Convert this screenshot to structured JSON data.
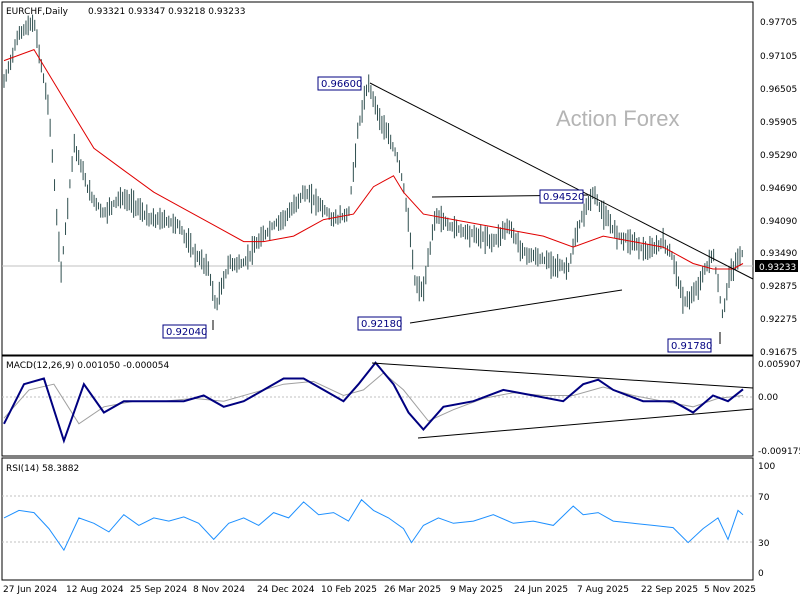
{
  "colors": {
    "bar": "#2f4f4f",
    "ma": "#e00000",
    "macd_main": "#000080",
    "macd_signal": "#a0a0a0",
    "rsi": "#1e90ff",
    "trend": "#000000",
    "label_border": "#000080",
    "grid": "#c0c0c0"
  },
  "chart_data": [
    {
      "type": "line",
      "panel": "price",
      "title": "EURCHF,Daily",
      "ohlc": "0.93321 0.93347 0.93218 0.93233",
      "watermark": "Action Forex",
      "ylim": [
        0.9145,
        0.9785
      ],
      "y_ticks": [
        "0.97705",
        "0.97105",
        "0.96505",
        "0.95905",
        "0.95290",
        "0.94690",
        "0.94090",
        "0.93490",
        "0.92875",
        "0.92275",
        "0.91675"
      ],
      "x_ticks": [
        "27 Jun 2024",
        "12 Aug 2024",
        "25 Sep 2024",
        "8 Nov 2024",
        "24 Dec 2024",
        "10 Feb 2025",
        "26 Mar 2025",
        "9 May 2025",
        "24 Jun 2025",
        "7 Aug 2025",
        "22 Sep 2025",
        "5 Nov 2025"
      ],
      "last_price": "0.93233",
      "annotations": [
        "0.96600",
        "0.94520",
        "0.92040",
        "0.92180",
        "0.91780"
      ],
      "series": [
        {
          "name": "",
          "kind": "ohlc-bars",
          "x": [
            0,
            15,
            30,
            45,
            57,
            70,
            85,
            100,
            115,
            130,
            145,
            160,
            175,
            190,
            205,
            212,
            225,
            240,
            255,
            270,
            285,
            300,
            315,
            330,
            345,
            355,
            365,
            375,
            385,
            395,
            402,
            412,
            420,
            432,
            445,
            460,
            475,
            490,
            505,
            520,
            535,
            550,
            565,
            570,
            578,
            590,
            600,
            615,
            630,
            645,
            660,
            670,
            680,
            690,
            700,
            710,
            720,
            725,
            735,
            740
          ],
          "values": [
            0.964,
            0.973,
            0.975,
            0.959,
            0.929,
            0.953,
            0.944,
            0.94,
            0.943,
            0.942,
            0.939,
            0.939,
            0.938,
            0.933,
            0.93,
            0.923,
            0.931,
            0.931,
            0.935,
            0.938,
            0.94,
            0.944,
            0.942,
            0.939,
            0.94,
            0.956,
            0.964,
            0.958,
            0.954,
            0.95,
            0.943,
            0.927,
            0.926,
            0.94,
            0.938,
            0.937,
            0.936,
            0.935,
            0.938,
            0.933,
            0.932,
            0.931,
            0.93,
            0.934,
            0.939,
            0.944,
            0.94,
            0.936,
            0.935,
            0.933,
            0.935,
            0.932,
            0.924,
            0.925,
            0.929,
            0.933,
            0.921,
            0.928,
            0.932,
            0.933
          ]
        },
        {
          "name": "",
          "kind": "moving-average",
          "x": [
            0,
            30,
            60,
            90,
            120,
            150,
            180,
            210,
            240,
            260,
            290,
            320,
            350,
            370,
            390,
            400,
            420,
            450,
            480,
            510,
            540,
            570,
            600,
            630,
            660,
            690,
            710,
            730,
            740
          ],
          "values": [
            0.968,
            0.97,
            0.961,
            0.952,
            0.948,
            0.944,
            0.941,
            0.938,
            0.935,
            0.935,
            0.936,
            0.939,
            0.94,
            0.945,
            0.947,
            0.944,
            0.94,
            0.939,
            0.938,
            0.937,
            0.936,
            0.934,
            0.936,
            0.935,
            0.934,
            0.931,
            0.93,
            0.93,
            0.931
          ]
        }
      ]
    },
    {
      "type": "line",
      "panel": "macd",
      "title": "MACD(12,26,9) 0.001050 -0.000054",
      "ylim": [
        -0.0105,
        0.0068
      ],
      "y_ticks": [
        "0.005907",
        "0.00",
        "-0.009175"
      ],
      "series": [
        {
          "name": "",
          "kind": "macd",
          "x": [
            0,
            20,
            40,
            60,
            80,
            100,
            120,
            140,
            160,
            180,
            200,
            220,
            240,
            260,
            280,
            300,
            320,
            340,
            355,
            372,
            390,
            405,
            420,
            440,
            470,
            500,
            530,
            560,
            580,
            595,
            610,
            640,
            670,
            690,
            710,
            725,
            740
          ],
          "values": [
            -0.005,
            0.002,
            0.003,
            -0.008,
            0.002,
            -0.003,
            -0.001,
            -0.001,
            -0.001,
            -0.001,
            0.0,
            -0.002,
            -0.001,
            0.001,
            0.003,
            0.003,
            0.001,
            -0.001,
            0.002,
            0.0058,
            0.002,
            -0.003,
            -0.006,
            -0.002,
            -0.001,
            0.001,
            0.0,
            -0.001,
            0.002,
            0.0028,
            0.001,
            -0.001,
            -0.001,
            -0.003,
            0.0,
            -0.001,
            0.0011
          ]
        },
        {
          "name": "",
          "kind": "signal",
          "x": [
            0,
            25,
            50,
            75,
            100,
            130,
            160,
            190,
            220,
            250,
            280,
            310,
            340,
            360,
            380,
            400,
            425,
            450,
            480,
            510,
            540,
            570,
            600,
            630,
            660,
            690,
            715,
            740
          ],
          "values": [
            -0.004,
            0.001,
            0.002,
            -0.005,
            -0.002,
            -0.001,
            -0.001,
            -0.0005,
            -0.001,
            0.0005,
            0.002,
            0.0025,
            0.0,
            0.001,
            0.004,
            0.001,
            -0.0045,
            -0.0025,
            -0.0005,
            0.0005,
            0.0,
            0.0,
            0.0015,
            0.0,
            -0.001,
            -0.002,
            -0.0005,
            0.0
          ]
        }
      ]
    },
    {
      "type": "line",
      "panel": "rsi",
      "title": "RSI(14) 58.3882",
      "ylim": [
        -2,
        110
      ],
      "y_ticks": [
        "100",
        "70",
        "30",
        "0"
      ],
      "series": [
        {
          "name": "",
          "kind": "rsi",
          "x": [
            0,
            15,
            30,
            45,
            60,
            75,
            90,
            105,
            120,
            135,
            150,
            165,
            180,
            195,
            210,
            225,
            240,
            255,
            270,
            285,
            300,
            315,
            330,
            345,
            358,
            370,
            385,
            400,
            408,
            420,
            435,
            450,
            470,
            490,
            510,
            530,
            550,
            570,
            580,
            595,
            610,
            630,
            650,
            670,
            685,
            700,
            715,
            725,
            735,
            740
          ],
          "values": [
            55,
            62,
            60,
            45,
            25,
            55,
            50,
            42,
            58,
            48,
            55,
            52,
            56,
            50,
            35,
            50,
            55,
            48,
            60,
            55,
            70,
            58,
            60,
            52,
            72,
            62,
            55,
            45,
            32,
            48,
            55,
            50,
            52,
            58,
            50,
            52,
            48,
            66,
            58,
            60,
            52,
            50,
            48,
            46,
            32,
            45,
            55,
            35,
            62,
            58
          ]
        }
      ]
    }
  ]
}
